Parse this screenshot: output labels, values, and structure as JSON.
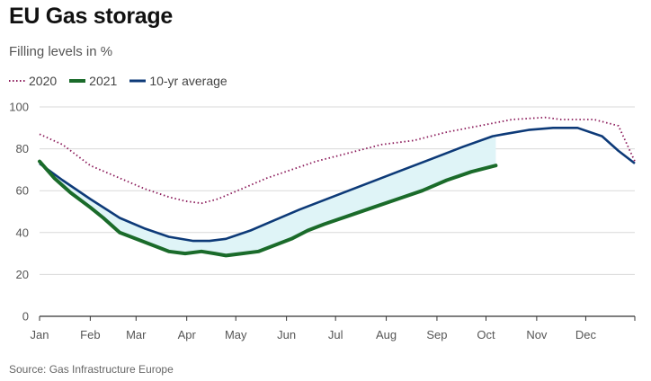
{
  "header": {
    "title": "EU Gas storage",
    "subtitle": "Filling levels in %"
  },
  "source": "Source: Gas Infrastructure Europe",
  "colors": {
    "s2020": "#8b1a5a",
    "s2021": "#1a6b2a",
    "avg": "#0d3a78",
    "fill": "#dff4f7",
    "grid": "#d9d9d9"
  },
  "chart_data": {
    "type": "line",
    "title": "EU Gas storage",
    "subtitle": "Filling levels in %",
    "xlabel": "",
    "ylabel": "",
    "x_ticks": [
      "Jan",
      "Feb",
      "Mar",
      "Apr",
      "May",
      "Jun",
      "Jul",
      "Aug",
      "Sep",
      "Oct",
      "Nov",
      "Dec"
    ],
    "y_ticks": [
      0,
      20,
      40,
      60,
      80,
      100
    ],
    "ylim": [
      0,
      100
    ],
    "grid": "horizontal",
    "legend_position": "top-left",
    "shaded_area": "between 2021 and 10-yr average",
    "series": [
      {
        "name": "2020",
        "style": "dotted",
        "points": [
          [
            1,
            87
          ],
          [
            15,
            82
          ],
          [
            32,
            72
          ],
          [
            50,
            66
          ],
          [
            65,
            61
          ],
          [
            80,
            57
          ],
          [
            90,
            55
          ],
          [
            100,
            54
          ],
          [
            110,
            56
          ],
          [
            125,
            61
          ],
          [
            140,
            66
          ],
          [
            155,
            70
          ],
          [
            170,
            74
          ],
          [
            190,
            78
          ],
          [
            210,
            82
          ],
          [
            230,
            84
          ],
          [
            250,
            88
          ],
          [
            270,
            91
          ],
          [
            290,
            94
          ],
          [
            310,
            95
          ],
          [
            320,
            94
          ],
          [
            340,
            94
          ],
          [
            355,
            91
          ],
          [
            365,
            74
          ]
        ]
      },
      {
        "name": "2021",
        "style": "solid-thick",
        "points": [
          [
            1,
            74
          ],
          [
            10,
            66
          ],
          [
            20,
            59
          ],
          [
            32,
            52
          ],
          [
            40,
            47
          ],
          [
            50,
            40
          ],
          [
            60,
            37
          ],
          [
            70,
            34
          ],
          [
            80,
            31
          ],
          [
            90,
            30
          ],
          [
            100,
            31
          ],
          [
            108,
            30
          ],
          [
            115,
            29
          ],
          [
            125,
            30
          ],
          [
            135,
            31
          ],
          [
            145,
            34
          ],
          [
            155,
            37
          ],
          [
            165,
            41
          ],
          [
            175,
            44
          ],
          [
            190,
            48
          ],
          [
            205,
            52
          ],
          [
            220,
            56
          ],
          [
            235,
            60
          ],
          [
            250,
            65
          ],
          [
            265,
            69
          ],
          [
            280,
            72
          ]
        ]
      },
      {
        "name": "10-yr average",
        "style": "solid",
        "points": [
          [
            1,
            73
          ],
          [
            15,
            65
          ],
          [
            32,
            56
          ],
          [
            50,
            47
          ],
          [
            65,
            42
          ],
          [
            80,
            38
          ],
          [
            95,
            36
          ],
          [
            105,
            36
          ],
          [
            115,
            37
          ],
          [
            130,
            41
          ],
          [
            145,
            46
          ],
          [
            160,
            51
          ],
          [
            180,
            57
          ],
          [
            200,
            63
          ],
          [
            220,
            69
          ],
          [
            240,
            75
          ],
          [
            260,
            81
          ],
          [
            278,
            86
          ],
          [
            285,
            87
          ],
          [
            300,
            89
          ],
          [
            315,
            90
          ],
          [
            330,
            90
          ],
          [
            345,
            86
          ],
          [
            355,
            79
          ],
          [
            365,
            73
          ]
        ]
      }
    ]
  }
}
